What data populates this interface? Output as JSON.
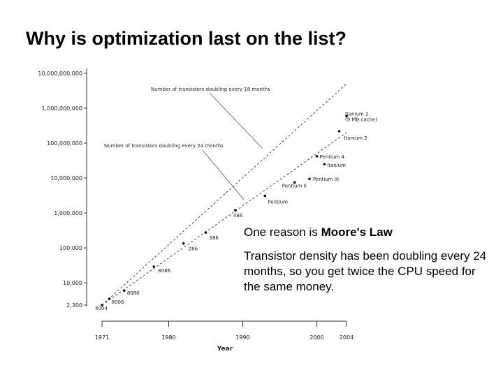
{
  "slide": {
    "title": "Why is optimization last on the list?",
    "reason_prefix": "One reason is ",
    "reason_emphasis": "Moore's Law",
    "explanation": "Transistor density has been doubling every 24 months, so you get twice the CPU speed for the same money."
  },
  "chart_data": {
    "type": "scatter",
    "xlabel": "Year",
    "y_scale": "log",
    "xlim": [
      1971,
      2004
    ],
    "ylim": [
      2300,
      10000000000
    ],
    "x_ticks": [
      "1971",
      "1980",
      "1990",
      "2000",
      "2004"
    ],
    "y_ticks": [
      "10,000,000,000",
      "1,000,000,000",
      "100,000,000",
      "10,000,000",
      "1,000,000",
      "100,000",
      "10,000",
      "2,300"
    ],
    "trend_lines": [
      {
        "label": "Number of transistors doubling every 18 months",
        "points": [
          [
            1971,
            2300
          ],
          [
            2004,
            5000000000
          ]
        ]
      },
      {
        "label": "Number of transistors doubling every 24 months",
        "points": [
          [
            1971,
            2300
          ],
          [
            2004,
            200000000
          ]
        ]
      }
    ],
    "points": [
      {
        "label": "4004",
        "x": 1971,
        "y": 2300
      },
      {
        "label": "8008",
        "x": 1972,
        "y": 3500
      },
      {
        "label": "8080",
        "x": 1974,
        "y": 6000
      },
      {
        "label": "8086",
        "x": 1978,
        "y": 29000
      },
      {
        "label": "286",
        "x": 1982,
        "y": 134000
      },
      {
        "label": "386",
        "x": 1985,
        "y": 275000
      },
      {
        "label": "486",
        "x": 1989,
        "y": 1200000
      },
      {
        "label": "Pentium",
        "x": 1993,
        "y": 3100000
      },
      {
        "label": "Pentium II",
        "x": 1997,
        "y": 7500000
      },
      {
        "label": "Pentium III",
        "x": 1999,
        "y": 9500000
      },
      {
        "label": "Pentium 4",
        "x": 2000,
        "y": 42000000
      },
      {
        "label": "Itanium",
        "x": 2001,
        "y": 25000000
      },
      {
        "label": "Itanium 2",
        "x": 2003,
        "y": 220000000
      },
      {
        "label": "Itanium 2\n(9 MB cache)",
        "x": 2004,
        "y": 592000000
      }
    ]
  }
}
